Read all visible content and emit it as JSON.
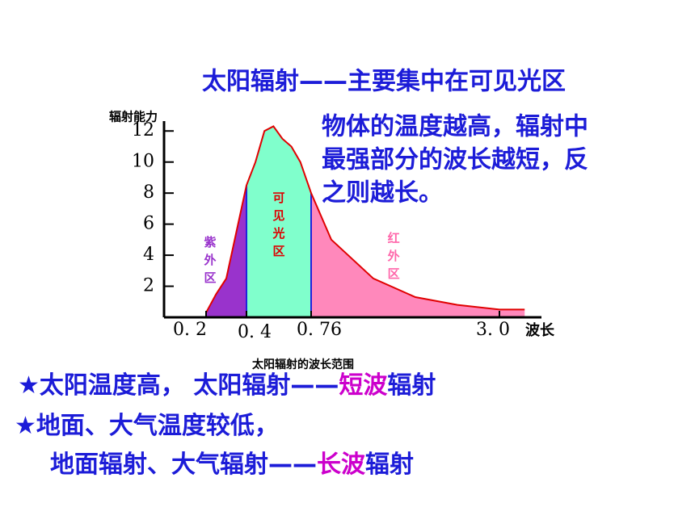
{
  "title": "太阳辐射——主要集中在可见光区",
  "note_lines": [
    "物体的温度越高，辐射中",
    "最强部分的波长越短，反",
    "之则越长。"
  ],
  "bullets": [
    [
      {
        "text": "★太阳温度高， 太阳辐射——",
        "color": "#1c1cd8"
      },
      {
        "text": "短波",
        "color": "#cc00cc"
      },
      {
        "text": "辐射",
        "color": "#1c1cd8"
      }
    ],
    [
      {
        "text": "★地面、大气温度较低，",
        "color": "#1c1cd8"
      }
    ],
    [
      {
        "text": "地面辐射、大气辐射——",
        "color": "#1c1cd8"
      },
      {
        "text": "长波",
        "color": "#cc00cc"
      },
      {
        "text": "辐射",
        "color": "#1c1cd8"
      }
    ]
  ],
  "chart_data": {
    "type": "area",
    "y_label": "辐射能力",
    "x_label": "波长",
    "caption": "太阳辐射的波长范围",
    "x": [
      0.2,
      0.25,
      0.3,
      0.35,
      0.4,
      0.45,
      0.5,
      0.55,
      0.6,
      0.65,
      0.7,
      0.76,
      1.0,
      1.5,
      2.0,
      2.5,
      3.0,
      3.3
    ],
    "series": [
      {
        "color": "#e00000",
        "values": [
          0.3,
          1.5,
          2.5,
          5.5,
          8.5,
          10,
          12,
          12.3,
          11.5,
          11,
          10,
          8,
          5,
          2.5,
          1.3,
          0.8,
          0.5,
          0.5
        ]
      }
    ],
    "regions": [
      {
        "label": "紫外区",
        "from": 0.2,
        "to": 0.4,
        "color": "#9933cc",
        "label_color": "#9933cc"
      },
      {
        "label": "可见光区",
        "from": 0.4,
        "to": 0.76,
        "color": "#80ffcc",
        "label_color": "#dd0000"
      },
      {
        "label": "红外区",
        "from": 0.76,
        "to": 3.3,
        "color": "#ff88bb",
        "label_color": "#ff66aa"
      }
    ],
    "divider_color": "#2222dd",
    "xlim": [
      0.1,
      3.6
    ],
    "xticks": [
      {
        "value": 0.2,
        "label": "0. 2"
      },
      {
        "value": 0.4,
        "label": "0. 4"
      },
      {
        "value": 0.76,
        "label": "0. 76"
      },
      {
        "value": 3.0,
        "label": "3. 0"
      }
    ],
    "ylim": [
      0,
      13
    ],
    "yticks": [
      2,
      4,
      6,
      8,
      10,
      12
    ]
  }
}
